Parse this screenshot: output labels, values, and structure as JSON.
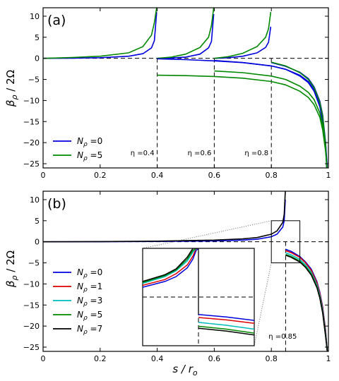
{
  "figure": {
    "ylabel_a": "β",
    "ylabel_b": "β",
    "ylabel_sub": "ρ",
    "ylabel_rest": "  / 2Ω",
    "xlabel_main": "s / r",
    "xlabel_sub": "o"
  },
  "chart_data": [
    {
      "type": "line",
      "panel_label": "(a)",
      "xlabel": "",
      "ylabel": "β_ρ / 2Ω",
      "xlim": [
        0,
        1
      ],
      "ylim": [
        -26,
        12
      ],
      "xticks": [
        0,
        0.2,
        0.4,
        0.6,
        0.8,
        1
      ],
      "xtick_labels": [
        "0",
        "0.2",
        "0.4",
        "0.6",
        "0.8",
        "1"
      ],
      "yticks": [
        10,
        5,
        0,
        -5,
        -10,
        -15,
        -20,
        -25
      ],
      "grid": false,
      "legend_position": "bottom-left",
      "legend": [
        {
          "name": "N",
          "sub": "ρ",
          "value": "=0",
          "color": "#0000dd"
        },
        {
          "name": "N",
          "sub": "ρ",
          "value": "=5",
          "color": "#008800"
        }
      ],
      "annotations": [
        {
          "text": "η =0.4",
          "x": 0.4
        },
        {
          "text": "η =0.6",
          "x": 0.6
        },
        {
          "text": "η =0.8",
          "x": 0.8
        }
      ],
      "series": [
        {
          "name": "N_ρ=0, η=0.4",
          "color": "#0000dd",
          "x": [
            0,
            0.1,
            0.2,
            0.3,
            0.35,
            0.38,
            0.39,
            0.398
          ],
          "y": [
            0,
            0.05,
            0.15,
            0.5,
            1.1,
            2.5,
            4.2,
            11
          ]
        },
        {
          "name": "N_ρ=5, η=0.4",
          "color": "#008800",
          "x": [
            0,
            0.1,
            0.2,
            0.3,
            0.35,
            0.38,
            0.39,
            0.398
          ],
          "y": [
            0,
            0.2,
            0.5,
            1.3,
            2.8,
            5.5,
            8.5,
            12
          ]
        },
        {
          "name": "N_ρ=0, η=0.6",
          "color": "#0000dd",
          "x": [
            0.4,
            0.45,
            0.5,
            0.55,
            0.58,
            0.59,
            0.598
          ],
          "y": [
            0,
            0.1,
            0.3,
            1.0,
            2.5,
            4.0,
            10.5
          ]
        },
        {
          "name": "N_ρ=5, η=0.6",
          "color": "#008800",
          "x": [
            0.4,
            0.45,
            0.5,
            0.55,
            0.58,
            0.59,
            0.598
          ],
          "y": [
            0,
            0.3,
            1.0,
            2.6,
            5.0,
            7.8,
            12
          ]
        },
        {
          "name": "N_ρ=0, η=0.8",
          "color": "#0000dd",
          "x": [
            0.6,
            0.65,
            0.7,
            0.75,
            0.78,
            0.79,
            0.798
          ],
          "y": [
            0,
            0.15,
            0.5,
            1.3,
            2.6,
            3.8,
            7.5
          ]
        },
        {
          "name": "N_ρ=5, η=0.8",
          "color": "#008800",
          "x": [
            0.6,
            0.65,
            0.7,
            0.75,
            0.78,
            0.79,
            0.798
          ],
          "y": [
            0,
            0.4,
            1.2,
            2.8,
            5.0,
            7.0,
            11
          ]
        },
        {
          "name": "N_ρ=0, η=0.4 outer",
          "color": "#0000dd",
          "x": [
            0.4,
            0.5,
            0.6,
            0.7,
            0.8,
            0.85,
            0.9,
            0.93,
            0.95,
            0.97,
            0.98,
            0.99,
            0.996
          ],
          "y": [
            -0.1,
            -0.3,
            -0.6,
            -1.0,
            -1.8,
            -2.6,
            -4.0,
            -5.5,
            -7.5,
            -11.0,
            -14.5,
            -20.0,
            -26
          ]
        },
        {
          "name": "N_ρ=0, η=0.6 outer",
          "color": "#0000dd",
          "x": [
            0.6,
            0.7,
            0.8,
            0.85,
            0.9,
            0.93,
            0.95,
            0.97,
            0.98,
            0.99,
            0.995
          ],
          "y": [
            -0.5,
            -1.0,
            -1.8,
            -2.6,
            -4.2,
            -5.8,
            -7.8,
            -11.5,
            -15.0,
            -21.0,
            -26
          ]
        },
        {
          "name": "N_ρ=0, η=0.8 outer",
          "color": "#0000dd",
          "x": [
            0.8,
            0.85,
            0.9,
            0.93,
            0.95,
            0.97,
            0.98,
            0.99,
            0.994
          ],
          "y": [
            -1.0,
            -1.9,
            -3.3,
            -4.8,
            -6.8,
            -10.2,
            -13.5,
            -20.0,
            -26
          ]
        },
        {
          "name": "N_ρ=5, η=0.4 outer",
          "color": "#008800",
          "x": [
            0.4,
            0.5,
            0.6,
            0.7,
            0.8,
            0.85,
            0.9,
            0.93,
            0.95,
            0.97,
            0.98,
            0.99,
            0.995
          ],
          "y": [
            -4.0,
            -4.1,
            -4.3,
            -4.7,
            -5.5,
            -6.3,
            -7.8,
            -9.3,
            -11.0,
            -14.0,
            -17.0,
            -22.0,
            -26
          ]
        },
        {
          "name": "N_ρ=5, η=0.6 outer",
          "color": "#008800",
          "x": [
            0.6,
            0.7,
            0.8,
            0.85,
            0.9,
            0.93,
            0.95,
            0.97,
            0.98,
            0.99,
            0.995
          ],
          "y": [
            -3.0,
            -3.4,
            -4.2,
            -5.0,
            -6.6,
            -8.1,
            -9.8,
            -13.0,
            -16.0,
            -21.5,
            -26
          ]
        },
        {
          "name": "N_ρ=5, η=0.8 outer",
          "color": "#008800",
          "x": [
            0.8,
            0.85,
            0.9,
            0.93,
            0.95,
            0.97,
            0.98,
            0.99,
            0.994
          ],
          "y": [
            -0.9,
            -1.8,
            -3.4,
            -5.0,
            -7.0,
            -10.5,
            -13.8,
            -20.5,
            -26
          ]
        }
      ]
    },
    {
      "type": "line",
      "panel_label": "(b)",
      "xlabel": "s / r_o",
      "ylabel": "β_ρ / 2Ω",
      "xlim": [
        0,
        1
      ],
      "ylim": [
        -26,
        12
      ],
      "xticks": [
        0,
        0.2,
        0.4,
        0.6,
        0.8,
        1
      ],
      "xtick_labels": [
        "0",
        "0.2",
        "0.4",
        "0.6",
        "0.8",
        "1"
      ],
      "yticks": [
        10,
        5,
        0,
        -5,
        -10,
        -15,
        -20,
        -25
      ],
      "grid": false,
      "legend_position": "bottom-left",
      "legend": [
        {
          "name": "N",
          "sub": "ρ",
          "value": "=0",
          "color": "#0000dd"
        },
        {
          "name": "N",
          "sub": "ρ",
          "value": "=1",
          "color": "#dd0000"
        },
        {
          "name": "N",
          "sub": "ρ",
          "value": "=3",
          "color": "#00bbbb"
        },
        {
          "name": "N",
          "sub": "ρ",
          "value": "=5",
          "color": "#008800"
        },
        {
          "name": "N",
          "sub": "ρ",
          "value": "=7",
          "color": "#000000"
        }
      ],
      "annotations": [
        {
          "text": "η =0.85",
          "x": 0.85
        }
      ],
      "inset": {
        "x_range": [
          0.8,
          0.9
        ],
        "y_range": [
          -5,
          5
        ]
      },
      "series": [
        {
          "name": "N_ρ=0",
          "color": "#0000dd",
          "x": [
            0,
            0.2,
            0.4,
            0.6,
            0.7,
            0.75,
            0.8,
            0.82,
            0.84,
            0.845,
            0.849
          ],
          "y": [
            0,
            0.02,
            0.08,
            0.2,
            0.4,
            0.6,
            1.2,
            1.8,
            3.5,
            5.0,
            10
          ]
        },
        {
          "name": "N_ρ=7",
          "color": "#000000",
          "x": [
            0,
            0.2,
            0.4,
            0.6,
            0.7,
            0.75,
            0.8,
            0.82,
            0.84,
            0.845,
            0.849
          ],
          "y": [
            0,
            0.05,
            0.15,
            0.4,
            0.7,
            1.0,
            1.8,
            2.6,
            4.6,
            6.5,
            12
          ]
        },
        {
          "name": "N_ρ=0 outer",
          "color": "#0000dd",
          "x": [
            0.85,
            0.87,
            0.9,
            0.92,
            0.94,
            0.96,
            0.97,
            0.98,
            0.99,
            0.996
          ],
          "y": [
            -1.8,
            -2.3,
            -3.5,
            -4.8,
            -6.5,
            -9.5,
            -12.0,
            -15.5,
            -21.0,
            -26
          ]
        },
        {
          "name": "N_ρ=1 outer",
          "color": "#dd0000",
          "x": [
            0.85,
            0.87,
            0.9,
            0.92,
            0.94,
            0.96,
            0.97,
            0.98,
            0.99,
            0.996
          ],
          "y": [
            -2.1,
            -2.6,
            -3.7,
            -5.0,
            -6.8,
            -9.8,
            -12.3,
            -15.8,
            -21.3,
            -26
          ]
        },
        {
          "name": "N_ρ=3 outer",
          "color": "#00bbbb",
          "x": [
            0.85,
            0.87,
            0.9,
            0.92,
            0.94,
            0.96,
            0.97,
            0.98,
            0.99,
            0.996
          ],
          "y": [
            -2.6,
            -3.1,
            -4.2,
            -5.5,
            -7.3,
            -10.3,
            -12.8,
            -16.3,
            -21.8,
            -26
          ]
        },
        {
          "name": "N_ρ=5 outer",
          "color": "#008800",
          "x": [
            0.85,
            0.87,
            0.9,
            0.92,
            0.94,
            0.96,
            0.97,
            0.98,
            0.99,
            0.996
          ],
          "y": [
            -3.0,
            -3.5,
            -4.6,
            -5.9,
            -7.7,
            -10.7,
            -13.2,
            -16.7,
            -22.2,
            -26
          ]
        },
        {
          "name": "N_ρ=7 outer",
          "color": "#000000",
          "x": [
            0.85,
            0.87,
            0.9,
            0.92,
            0.94,
            0.96,
            0.97,
            0.98,
            0.99,
            0.996
          ],
          "y": [
            -3.2,
            -3.7,
            -4.8,
            -6.1,
            -7.9,
            -10.9,
            -13.4,
            -16.9,
            -22.4,
            -26
          ]
        }
      ],
      "inset_series": [
        {
          "name": "N_ρ=0 inner",
          "color": "#0000dd",
          "x": [
            0.8,
            0.82,
            0.83,
            0.84,
            0.845,
            0.848,
            0.85
          ],
          "y": [
            1.0,
            1.6,
            2.1,
            3.0,
            3.9,
            4.8,
            5
          ]
        },
        {
          "name": "N_ρ=1 inner",
          "color": "#dd0000",
          "x": [
            0.8,
            0.82,
            0.83,
            0.84,
            0.845,
            0.848,
            0.85
          ],
          "y": [
            1.2,
            1.8,
            2.4,
            3.3,
            4.2,
            5.0,
            5
          ]
        },
        {
          "name": "N_ρ=3 inner",
          "color": "#00bbbb",
          "x": [
            0.8,
            0.82,
            0.83,
            0.84,
            0.845,
            0.848,
            0.85
          ],
          "y": [
            1.4,
            2.1,
            2.7,
            3.7,
            4.6,
            5.0,
            5
          ]
        },
        {
          "name": "N_ρ=5 inner",
          "color": "#008800",
          "x": [
            0.8,
            0.82,
            0.83,
            0.84,
            0.845,
            0.848,
            0.85
          ],
          "y": [
            1.5,
            2.2,
            2.8,
            3.9,
            4.8,
            5.0,
            5
          ]
        },
        {
          "name": "N_ρ=7 inner",
          "color": "#000000",
          "x": [
            0.8,
            0.82,
            0.83,
            0.84,
            0.845,
            0.848,
            0.85
          ],
          "y": [
            1.6,
            2.3,
            2.9,
            4.1,
            5.0,
            5.0,
            5
          ]
        },
        {
          "name": "N_ρ=0 outer inset",
          "color": "#0000dd",
          "x": [
            0.85,
            0.875,
            0.9
          ],
          "y": [
            -1.8,
            -2.05,
            -2.4
          ]
        },
        {
          "name": "N_ρ=1 outer inset",
          "color": "#dd0000",
          "x": [
            0.85,
            0.875,
            0.9
          ],
          "y": [
            -2.1,
            -2.35,
            -2.7
          ]
        },
        {
          "name": "N_ρ=3 outer inset",
          "color": "#00bbbb",
          "x": [
            0.85,
            0.875,
            0.9
          ],
          "y": [
            -2.6,
            -2.9,
            -3.3
          ]
        },
        {
          "name": "N_ρ=5 outer inset",
          "color": "#008800",
          "x": [
            0.85,
            0.875,
            0.9
          ],
          "y": [
            -3.0,
            -3.3,
            -3.7
          ]
        },
        {
          "name": "N_ρ=7 outer inset",
          "color": "#000000",
          "x": [
            0.85,
            0.875,
            0.9
          ],
          "y": [
            -3.2,
            -3.5,
            -3.9
          ]
        }
      ]
    }
  ]
}
